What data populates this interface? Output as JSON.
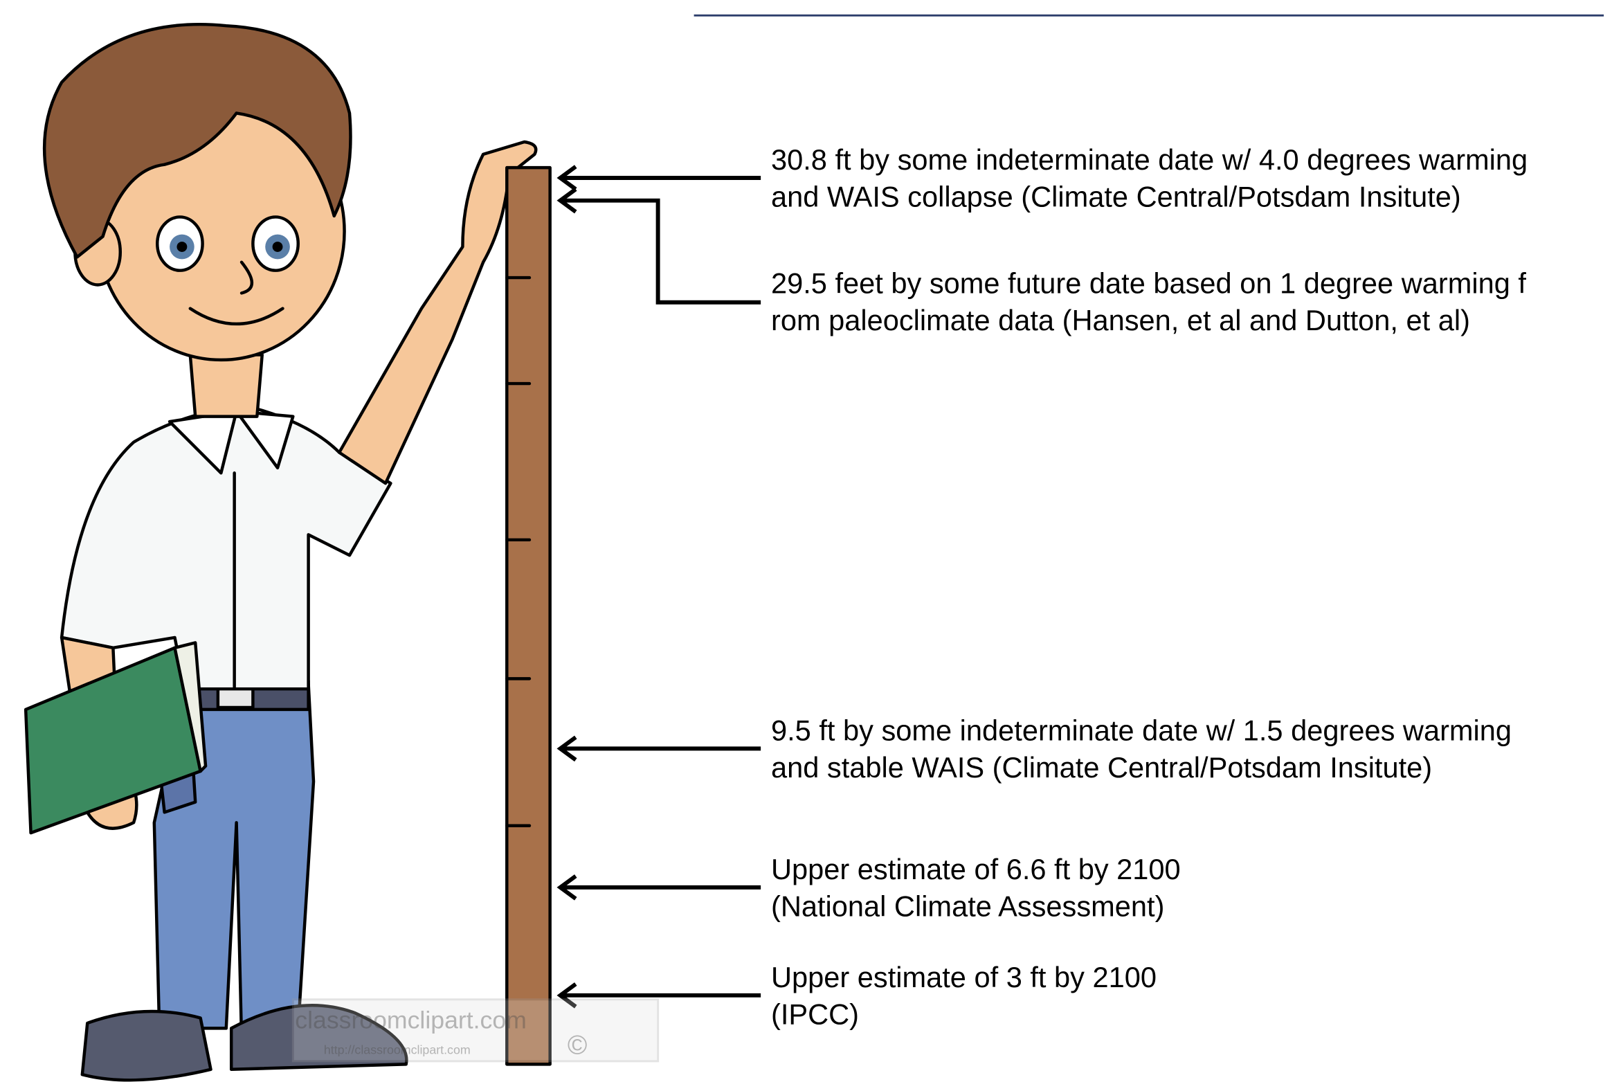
{
  "annotations": [
    {
      "lines": [
        "30.8 ft by some indeterminate date w/ 4.0 degrees warming",
        "and WAIS collapse (Climate Central/Potsdam Insitute)"
      ]
    },
    {
      "lines": [
        "29.5 feet by some future date based on 1 degree warming f",
        "rom paleoclimate data (Hansen, et al  and Dutton, et al)"
      ]
    },
    {
      "lines": [
        "9.5 ft by some indeterminate date w/ 1.5 degrees warming",
        "and stable WAIS  (Climate Central/Potsdam Insitute)"
      ]
    },
    {
      "lines": [
        "Upper estimate of 6.6 ft by 2100",
        "(National Climate Assessment)"
      ]
    },
    {
      "lines": [
        "Upper estimate of 3 ft by 2100",
        "(IPCC)"
      ]
    }
  ],
  "watermark": {
    "site": "classroomclipart.com",
    "url": "http://classroomclipart.com",
    "symbol": "©"
  }
}
